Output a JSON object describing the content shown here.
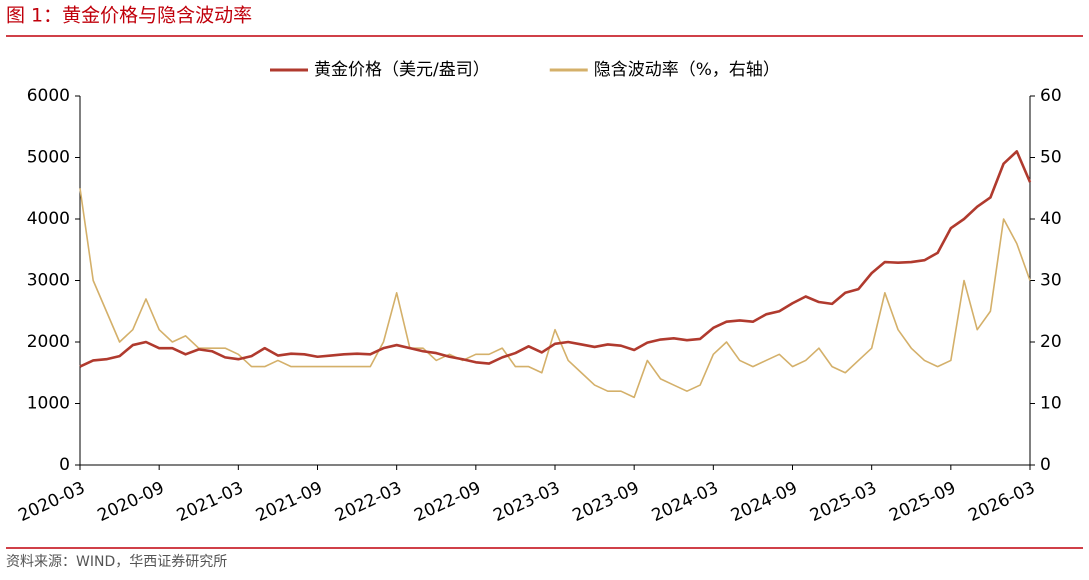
{
  "chart_data": {
    "type": "line",
    "title": "图 1：黄金价格与隐含波动率",
    "source": "资料来源：WIND，华西证券研究所",
    "x": [
      "2020-03",
      "2020-04",
      "2020-05",
      "2020-06",
      "2020-07",
      "2020-08",
      "2020-09",
      "2020-10",
      "2020-11",
      "2020-12",
      "2021-01",
      "2021-02",
      "2021-03",
      "2021-04",
      "2021-05",
      "2021-06",
      "2021-07",
      "2021-08",
      "2021-09",
      "2021-10",
      "2021-11",
      "2021-12",
      "2022-01",
      "2022-02",
      "2022-03",
      "2022-04",
      "2022-05",
      "2022-06",
      "2022-07",
      "2022-08",
      "2022-09",
      "2022-10",
      "2022-11",
      "2022-12",
      "2023-01",
      "2023-02",
      "2023-03",
      "2023-04",
      "2023-05",
      "2023-06",
      "2023-07",
      "2023-08",
      "2023-09",
      "2023-10",
      "2023-11",
      "2023-12",
      "2024-01",
      "2024-02",
      "2024-03",
      "2024-04",
      "2024-05",
      "2024-06",
      "2024-07",
      "2024-08",
      "2024-09",
      "2024-10",
      "2024-11",
      "2024-12",
      "2025-01",
      "2025-02",
      "2025-03",
      "2025-04",
      "2025-05",
      "2025-06",
      "2025-07",
      "2025-08",
      "2025-09",
      "2025-10",
      "2025-11",
      "2025-12",
      "2026-01",
      "2026-02",
      "2026-03"
    ],
    "xtick_every": 6,
    "series": [
      {
        "name": "黄金价格（美元/盎司）",
        "color": "#b03a2e",
        "axis": "y",
        "values": [
          1600,
          1700,
          1720,
          1770,
          1950,
          2000,
          1900,
          1900,
          1800,
          1880,
          1850,
          1750,
          1720,
          1770,
          1900,
          1780,
          1810,
          1800,
          1760,
          1780,
          1800,
          1810,
          1800,
          1900,
          1950,
          1900,
          1850,
          1820,
          1760,
          1720,
          1670,
          1650,
          1750,
          1820,
          1930,
          1830,
          1970,
          2000,
          1960,
          1920,
          1960,
          1940,
          1870,
          1990,
          2040,
          2060,
          2030,
          2050,
          2230,
          2330,
          2350,
          2330,
          2450,
          2500,
          2630,
          2740,
          2650,
          2620,
          2800,
          2860,
          3120,
          3300,
          3290,
          3300,
          3330,
          3450,
          3850,
          4000,
          4200,
          4350,
          4900,
          5100,
          4600
        ]
      },
      {
        "name": "隐含波动率（%，右轴）",
        "color": "#d4b06a",
        "axis": "y2",
        "values": [
          45,
          30,
          25,
          20,
          22,
          27,
          22,
          20,
          21,
          19,
          19,
          19,
          18,
          16,
          16,
          17,
          16,
          16,
          16,
          16,
          16,
          16,
          16,
          20,
          28,
          19,
          19,
          17,
          18,
          17,
          18,
          18,
          19,
          16,
          16,
          15,
          22,
          17,
          15,
          13,
          12,
          12,
          11,
          17,
          14,
          13,
          12,
          13,
          18,
          20,
          17,
          16,
          17,
          18,
          16,
          17,
          19,
          16,
          15,
          17,
          19,
          28,
          22,
          19,
          17,
          16,
          17,
          30,
          22,
          25,
          40,
          36,
          30
        ]
      }
    ],
    "ylim": [
      0,
      6000
    ],
    "yticks": [
      0,
      1000,
      2000,
      3000,
      4000,
      5000,
      6000
    ],
    "y2lim": [
      0,
      60
    ],
    "y2ticks": [
      0,
      10,
      20,
      30,
      40,
      50,
      60
    ]
  }
}
